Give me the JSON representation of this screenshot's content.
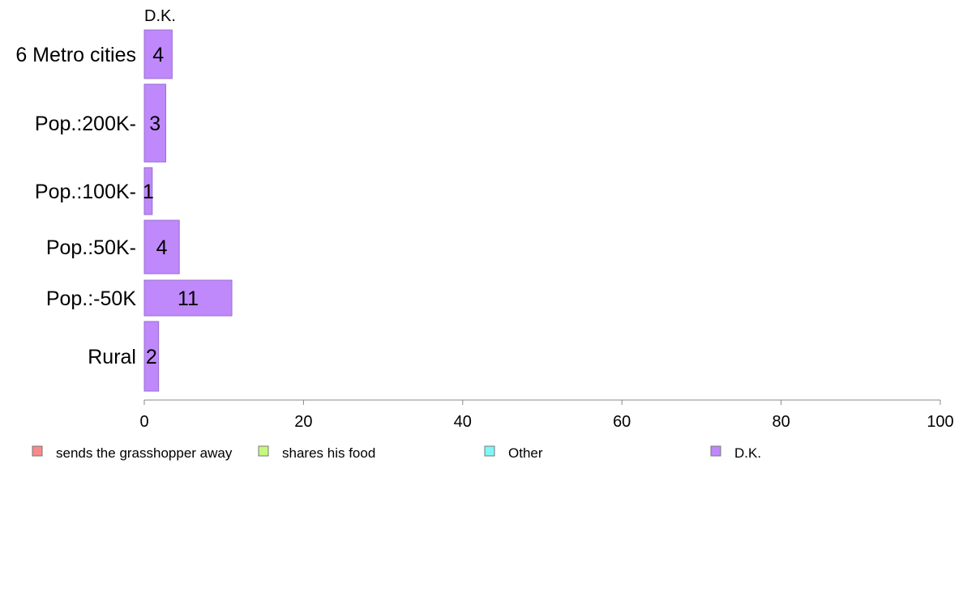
{
  "chart_data": {
    "type": "bar",
    "orientation": "horizontal",
    "stacked": true,
    "column_header": "D.K.",
    "categories": [
      "6 Metro cities",
      "Pop.:200K-",
      "Pop.:100K-",
      "Pop.:50K-",
      "Pop.:-50K",
      "Rural"
    ],
    "series": [
      {
        "name": "sends the grasshopper away",
        "color": "#f88a8a",
        "values": [
          0,
          0,
          0,
          0,
          0,
          0
        ]
      },
      {
        "name": "shares his food",
        "color": "#c6f77f",
        "values": [
          0,
          0,
          0,
          0,
          0,
          0
        ]
      },
      {
        "name": "Other",
        "color": "#7ff7f7",
        "values": [
          0,
          0,
          0,
          0,
          0,
          0
        ]
      },
      {
        "name": "D.K.",
        "color": "#bf88fb",
        "values": [
          3.5,
          2.7,
          1,
          4.4,
          11,
          1.8
        ],
        "data_labels": [
          "4",
          "3",
          "1",
          "4",
          "11",
          "2"
        ]
      }
    ],
    "xlim": [
      0,
      100
    ],
    "xticks": [
      "0",
      "20",
      "40",
      "60",
      "80",
      "100"
    ],
    "grid": false,
    "legend_position": "bottom"
  }
}
